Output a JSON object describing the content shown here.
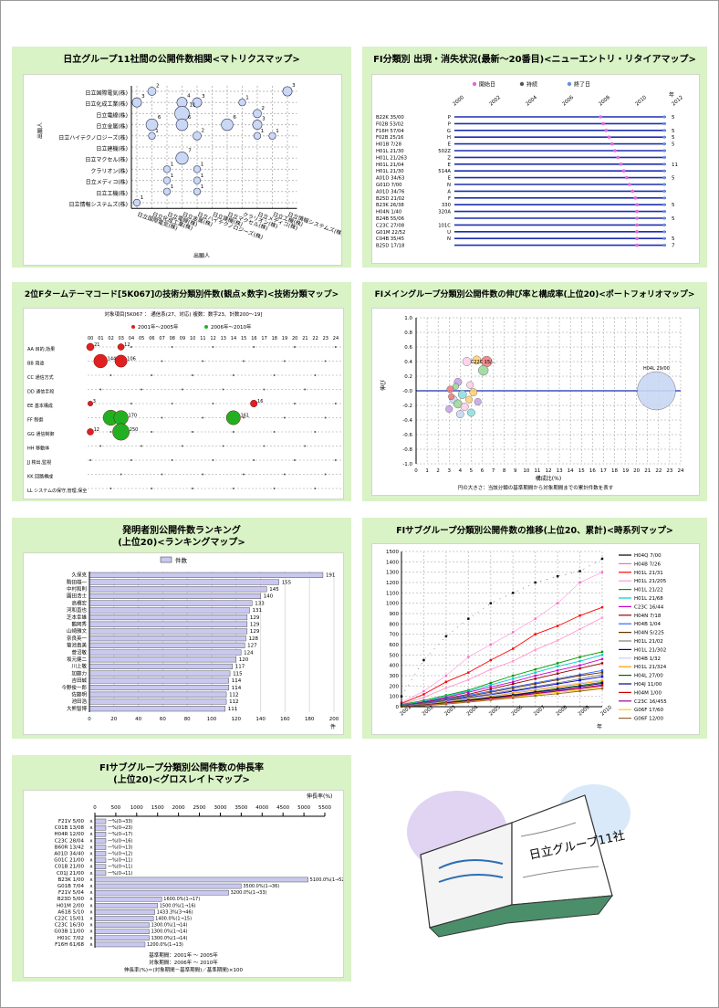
{
  "panels": {
    "matrix": {
      "title": "日立グループ11社間の公開件数相関<マトリクスマップ>",
      "ylabel": "出願人",
      "xlabel": "出願人"
    },
    "entry": {
      "title": "FI分類別 出現・消失状況(最新～20番目)<ニューエントリ・リタイアマップ>",
      "legend": [
        "開始日",
        "持続",
        "終了日"
      ]
    },
    "tech": {
      "title": "2位Fタームテーマコード[5K067]の技術分類別件数(観点×数字)<技術分類マップ>",
      "subtitle": "対象項目[5K067 ：  通信系(27、対応)  複数：数字23、計数200～19]",
      "legend": [
        "2001年～2005年",
        "2006年～2010年"
      ]
    },
    "portfolio": {
      "title": "FIメイングループ分類別公開件数の伸び率と構成率(上位20)<ポートフォリオマップ>",
      "ylabel": "伸び",
      "xlabel": "構成比(%)",
      "note": "円の大きさ：当該分類の基準期間から対象期間までの累計件数を表す",
      "bubble_label": "H04L 29/00"
    },
    "ranking": {
      "title_line1": "発明者別公開件数ランキング",
      "title_line2": "(上位20)<ランキングマップ>",
      "legend": "件数",
      "unit": "件"
    },
    "timeseries": {
      "title": "FIサブグループ分類別公開件数の推移(上位20、累計)<時系列マップ>",
      "xunit": "年"
    },
    "growth": {
      "title_line1": "FIサブグループ分類別公開件数の伸長率",
      "title_line2": "(上位20)<グロスレイトマップ>",
      "unit": "伸長率(%)",
      "footer": [
        "基準期間：2001年 ～ 2005年",
        "対象期間：2006年 ～ 2010年",
        "伸長率(%)＝(対象期間－基準期間)／基準期間)×100"
      ]
    },
    "clipart": {
      "label": "日立グループ11社"
    }
  },
  "chart_data": [
    {
      "type": "scatter",
      "id": "matrix",
      "title": "日立グループ11社間の公開件数相関<マトリクスマップ>",
      "rows": [
        "日立国際電気(株)",
        "日立化成工業(株)",
        "日立電線(株)",
        "日立金属(株)",
        "日立ハイテクノロジーズ(株)",
        "日立建機(株)",
        "日立マクセル(株)",
        "クラリオン(株)",
        "日立メディコ(株)",
        "日立工機(株)",
        "日立情報システムズ(株)"
      ],
      "cols": [
        "日立国際電気(株)",
        "日立化成工業(株)",
        "日立電線(株)",
        "日立金属(株)",
        "日立ハイテクノロジーズ(株)",
        "日立建機(株)",
        "日立マクセル(株)",
        "クラリオン(株)",
        "日立メディコ(株)",
        "日立工機(株)",
        "日立情報システムズ(株)"
      ],
      "points": [
        {
          "r": 0,
          "c": 1,
          "v": 2
        },
        {
          "r": 0,
          "c": 10,
          "v": 3
        },
        {
          "r": 1,
          "c": 0,
          "v": 3
        },
        {
          "r": 1,
          "c": 3,
          "v": 4
        },
        {
          "r": 1,
          "c": 4,
          "v": 3
        },
        {
          "r": 1,
          "c": 7,
          "v": 1
        },
        {
          "r": 2,
          "c": 3,
          "v": 11
        },
        {
          "r": 2,
          "c": 8,
          "v": 2
        },
        {
          "r": 3,
          "c": 1,
          "v": 6
        },
        {
          "r": 3,
          "c": 3,
          "v": 6
        },
        {
          "r": 3,
          "c": 6,
          "v": 6
        },
        {
          "r": 3,
          "c": 8,
          "v": 3
        },
        {
          "r": 4,
          "c": 1,
          "v": 1
        },
        {
          "r": 4,
          "c": 4,
          "v": 2
        },
        {
          "r": 4,
          "c": 8,
          "v": 1
        },
        {
          "r": 4,
          "c": 9,
          "v": 1
        },
        {
          "r": 6,
          "c": 3,
          "v": 7
        },
        {
          "r": 7,
          "c": 2,
          "v": 1
        },
        {
          "r": 7,
          "c": 4,
          "v": 1
        },
        {
          "r": 8,
          "c": 2,
          "v": 1
        },
        {
          "r": 8,
          "c": 4,
          "v": 1
        },
        {
          "r": 9,
          "c": 2,
          "v": 1
        },
        {
          "r": 9,
          "c": 4,
          "v": 1
        },
        {
          "r": 10,
          "c": 0,
          "v": 1
        }
      ]
    },
    {
      "type": "scatter",
      "id": "entry",
      "title": "FI分類別 出現・消失状況(最新～20番目)<ニューエントリ・リタイアマップ>",
      "x_ticks": [
        "2000",
        "2002",
        "2004",
        "2006",
        "2008",
        "2010",
        "2012"
      ],
      "xunit": "年",
      "rows": [
        {
          "label": "B22K 35/00",
          "code": "P",
          "count": 5
        },
        {
          "label": "F02B 53/02",
          "code": "P",
          "count": ""
        },
        {
          "label": "F16H 57/04",
          "code": "G",
          "count": 5
        },
        {
          "label": "F02B 25/16",
          "code": "H",
          "count": 5
        },
        {
          "label": "H01B 7/28",
          "code": "E",
          "count": 5
        },
        {
          "label": "H01L 21/30",
          "code": "502Z",
          "count": ""
        },
        {
          "label": "H01L 21/263",
          "code": "Z",
          "count": ""
        },
        {
          "label": "H01L 21/04",
          "code": "E",
          "count": 11
        },
        {
          "label": "H01L 21/30",
          "code": "514A",
          "count": ""
        },
        {
          "label": "A01D 34/63",
          "code": "E",
          "count": 5
        },
        {
          "label": "G01D 7/00",
          "code": "N",
          "count": ""
        },
        {
          "label": "A01D 34/76",
          "code": "A",
          "count": ""
        },
        {
          "label": "B25D 21/02",
          "code": "F",
          "count": ""
        },
        {
          "label": "B23K 26/38",
          "code": "330",
          "count": 5
        },
        {
          "label": "H04N 1/40",
          "code": "320A",
          "count": ""
        },
        {
          "label": "B24B 55/06",
          "code": "",
          "count": 5
        },
        {
          "label": "C23C 27/08",
          "code": "101C",
          "count": ""
        },
        {
          "label": "G01M 22/52",
          "code": "U",
          "count": ""
        },
        {
          "label": "C04B 35/45",
          "code": "N",
          "count": 5
        },
        {
          "label": "B25D 17/18",
          "code": "",
          "count": 7
        }
      ]
    },
    {
      "type": "scatter",
      "id": "tech",
      "title": "2位Fタームテーマコード[5K067]の技術分類別件数(観点×数字)<技術分類マップ>",
      "col_labels": [
        "00",
        "01",
        "02",
        "03",
        "04",
        "05",
        "06",
        "07",
        "08",
        "09",
        "10",
        "11",
        "12",
        "13",
        "14",
        "15",
        "16",
        "17",
        "18",
        "19",
        "20",
        "21",
        "22",
        "23",
        "24"
      ],
      "row_labels": [
        "AA 目的,効果",
        "BB 用途",
        "CC 通信方式",
        "DD 通信手段",
        "EE 基本構成",
        "FF 制御",
        "GG 通信制御",
        "HH 移動体",
        "JJ 検出,監視",
        "KK 回路構成",
        "LL システムの保守,管理,保全"
      ],
      "series": [
        "2001年～2005年",
        "2006年～2010年"
      ],
      "highlights": [
        {
          "row": 0,
          "col": 0,
          "v": 21
        },
        {
          "row": 0,
          "col": 3,
          "v": 12
        },
        {
          "row": 1,
          "col": 1,
          "v": 144
        },
        {
          "row": 1,
          "col": 3,
          "v": 106
        },
        {
          "row": 4,
          "col": 0,
          "v": 3
        },
        {
          "row": 4,
          "col": 16,
          "v": 16
        },
        {
          "row": 5,
          "col": 2,
          "v": 195
        },
        {
          "row": 5,
          "col": 3,
          "v": 170
        },
        {
          "row": 5,
          "col": 14,
          "v": 161
        },
        {
          "row": 6,
          "col": 0,
          "v": 12
        },
        {
          "row": 6,
          "col": 3,
          "v": 250
        }
      ]
    },
    {
      "type": "scatter",
      "id": "portfolio",
      "title": "FIメイングループ分類別公開件数の伸び率と構成率(上位20)<ポートフォリオマップ>",
      "xlabel": "構成比(%)",
      "ylabel": "伸び",
      "xlim": [
        0,
        24
      ],
      "ylim": [
        -1,
        1
      ],
      "points": [
        {
          "x": 21.8,
          "y": 0.0,
          "size": 5,
          "label": "H04L 29/00"
        },
        {
          "x": 6.4,
          "y": 0.4,
          "size": 1.4,
          "label": ""
        },
        {
          "x": 5.5,
          "y": 0.42,
          "size": 1.1,
          "label": ""
        },
        {
          "x": 6.1,
          "y": 0.28,
          "size": 1.3,
          "label": "C22C 15/..."
        },
        {
          "x": 4.6,
          "y": 0.4,
          "size": 1.1,
          "label": ""
        },
        {
          "x": 3.8,
          "y": 0.12,
          "size": 1,
          "label": ""
        },
        {
          "x": 4.2,
          "y": -0.05,
          "size": 1.1,
          "label": ""
        },
        {
          "x": 3.4,
          "y": -0.12,
          "size": 1,
          "label": ""
        },
        {
          "x": 3.1,
          "y": 0.02,
          "size": 0.9,
          "label": ""
        },
        {
          "x": 5.2,
          "y": -0.02,
          "size": 1,
          "label": ""
        },
        {
          "x": 3.8,
          "y": -0.18,
          "size": 1.1,
          "label": ""
        },
        {
          "x": 4.4,
          "y": -0.22,
          "size": 1,
          "label": ""
        },
        {
          "x": 3.0,
          "y": -0.25,
          "size": 0.9,
          "label": ""
        },
        {
          "x": 5.0,
          "y": -0.3,
          "size": 1,
          "label": ""
        },
        {
          "x": 4.0,
          "y": -0.32,
          "size": 1,
          "label": ""
        },
        {
          "x": 3.2,
          "y": -0.08,
          "size": 0.8,
          "label": ""
        },
        {
          "x": 4.8,
          "y": -0.12,
          "size": 0.9,
          "label": ""
        },
        {
          "x": 3.6,
          "y": 0.06,
          "size": 0.8,
          "label": ""
        },
        {
          "x": 4.9,
          "y": 0.08,
          "size": 0.9,
          "label": ""
        },
        {
          "x": 5.6,
          "y": -0.15,
          "size": 0.9,
          "label": ""
        }
      ]
    },
    {
      "type": "bar",
      "id": "ranking",
      "title": "発明者別公開件数ランキング(上位20)<ランキングマップ>",
      "series_name": "件数",
      "xlim": [
        0,
        200
      ],
      "x_ticks": [
        0,
        20,
        40,
        60,
        80,
        100,
        120,
        140,
        160,
        180,
        200
      ],
      "categories": [
        "久保克",
        "駒田雄一",
        "中村和則",
        "園田浩士",
        "高橋宏",
        "河和直也",
        "芝本幸雄",
        "鶴岡秀",
        "山崎雅文",
        "奈良英一",
        "菊池直美",
        "菅沼敬",
        "坂元健二",
        "川上敬",
        "加藤力",
        "吉田誠",
        "今野俊一郎",
        "佐藤明",
        "池田浩",
        "大熊智博"
      ],
      "values": [
        191,
        155,
        145,
        140,
        133,
        131,
        129,
        129,
        129,
        128,
        127,
        124,
        120,
        117,
        115,
        114,
        114,
        112,
        112,
        111
      ]
    },
    {
      "type": "line",
      "id": "timeseries",
      "title": "FIサブグループ分類別公開件数の推移(上位20、累計)<時系列マップ>",
      "ylim": [
        0,
        1500
      ],
      "y_ticks": [
        0,
        100,
        200,
        300,
        400,
        500,
        600,
        700,
        800,
        900,
        1000,
        1100,
        1200,
        1300,
        1400,
        1500
      ],
      "x": [
        "2001",
        "2002",
        "2003",
        "2004",
        "2005",
        "2006",
        "2007",
        "2008",
        "2009",
        "2010"
      ],
      "xunit": "年",
      "series": [
        {
          "name": "H04Q 7/00",
          "color": "#000000",
          "values": [
            100,
            450,
            680,
            850,
            1000,
            1100,
            1200,
            1260,
            1310,
            1430
          ]
        },
        {
          "name": "H04B 7/26",
          "color": "#ff66cc",
          "values": [
            40,
            150,
            300,
            480,
            600,
            720,
            850,
            1000,
            1200,
            1300
          ]
        },
        {
          "name": "H01L 21/31",
          "color": "#ff0000",
          "values": [
            30,
            120,
            240,
            330,
            450,
            560,
            700,
            780,
            880,
            960
          ]
        },
        {
          "name": "H01L 21/205",
          "color": "#ff99cc",
          "values": [
            20,
            90,
            180,
            260,
            360,
            440,
            550,
            640,
            750,
            860
          ]
        },
        {
          "name": "H01L 21/22",
          "color": "#009900",
          "values": [
            20,
            60,
            110,
            160,
            230,
            300,
            360,
            420,
            480,
            530
          ]
        },
        {
          "name": "H01L 21/68",
          "color": "#00cccc",
          "values": [
            15,
            50,
            100,
            150,
            210,
            270,
            330,
            390,
            440,
            500
          ]
        },
        {
          "name": "C23C 16/44",
          "color": "#cc00cc",
          "values": [
            12,
            45,
            90,
            140,
            190,
            240,
            300,
            350,
            400,
            460
          ]
        },
        {
          "name": "H04N 7/18",
          "color": "#990000",
          "values": [
            10,
            40,
            80,
            120,
            170,
            220,
            270,
            320,
            370,
            420
          ]
        },
        {
          "name": "H04B 1/04",
          "color": "#3366ff",
          "values": [
            10,
            35,
            75,
            110,
            150,
            190,
            230,
            270,
            310,
            350
          ]
        },
        {
          "name": "H04N 5/225",
          "color": "#663300",
          "values": [
            8,
            30,
            65,
            100,
            140,
            180,
            220,
            260,
            300,
            330
          ]
        },
        {
          "name": "H01L 21/02",
          "color": "#808080",
          "values": [
            8,
            28,
            60,
            90,
            125,
            160,
            195,
            230,
            270,
            310
          ]
        },
        {
          "name": "H01L 21/302",
          "color": "#0000cc",
          "values": [
            6,
            25,
            55,
            85,
            115,
            150,
            185,
            220,
            255,
            290
          ]
        },
        {
          "name": "H04B 1/32",
          "color": "#ccccff",
          "values": [
            6,
            22,
            50,
            80,
            110,
            140,
            170,
            200,
            230,
            260
          ]
        },
        {
          "name": "H01L 21/324",
          "color": "#ff9900",
          "values": [
            5,
            20,
            45,
            70,
            100,
            130,
            160,
            190,
            220,
            250
          ]
        },
        {
          "name": "H04L 27/00",
          "color": "#006600",
          "values": [
            5,
            18,
            40,
            65,
            90,
            115,
            145,
            175,
            205,
            235
          ]
        },
        {
          "name": "H04J 11/00",
          "color": "#000099",
          "values": [
            4,
            16,
            36,
            60,
            85,
            110,
            140,
            165,
            195,
            225
          ]
        },
        {
          "name": "H04M 1/00",
          "color": "#cc0000",
          "values": [
            4,
            15,
            34,
            55,
            80,
            105,
            130,
            155,
            180,
            210
          ]
        },
        {
          "name": "C23C 16/455",
          "color": "#990099",
          "values": [
            3,
            14,
            30,
            50,
            75,
            100,
            125,
            150,
            175,
            200
          ]
        },
        {
          "name": "G06F 17/60",
          "color": "#ffcc00",
          "values": [
            3,
            12,
            28,
            48,
            70,
            92,
            115,
            138,
            160,
            185
          ]
        },
        {
          "name": "G06F 12/00",
          "color": "#996633",
          "values": [
            2,
            10,
            25,
            44,
            65,
            85,
            105,
            125,
            150,
            175
          ]
        }
      ]
    },
    {
      "type": "bar",
      "id": "growth",
      "title": "FIサブグループ分類別公開件数の伸長率(上位20)<グロスレイトマップ>",
      "xlim": [
        0,
        5500
      ],
      "x_ticks": [
        0,
        500,
        1000,
        1500,
        2000,
        2500,
        3000,
        3500,
        4000,
        4500,
        5000,
        5500
      ],
      "categories": [
        "F21V 5/00",
        "C01B 13/08",
        "H04R 12/00",
        "C23C 28/04",
        "B60R 13/42",
        "A01D 34/40",
        "G01C 21/00",
        "C01B 21/00",
        "C01J 21/00",
        "B23K 1/00",
        "G01B 7/04",
        "F21V 5/04",
        "B23D 5/00",
        "H01M 2/00",
        "A61B 5/10",
        "C22C 15/01",
        "C23C 16/30",
        "G03B 11/00",
        "H01C 7/02",
        "F16H 61/68"
      ],
      "values": [
        0,
        0,
        0,
        0,
        0,
        0,
        0,
        0,
        0,
        5100,
        3500,
        3200,
        1600,
        1500,
        1433,
        1400,
        1300,
        1300,
        1300,
        1200
      ],
      "labels": [
        "一%(0→33)",
        "一%(0→23)",
        "一%(0→17)",
        "一%(0→16)",
        "一%(0→13)",
        "一%(0→12)",
        "一%(0→11)",
        "一%(0→11)",
        "一%(0→11)",
        "5100.0%(1→52)",
        "3500.0%(1→36)",
        "3200.0%(1→33)",
        "1600.0%(1→17)",
        "1500.0%(1→16)",
        "1433.3%(3→46)",
        "1400.0%(1→15)",
        "1300.0%(1→14)",
        "1300.0%(1→14)",
        "1300.0%(1→14)",
        "1200.0%(1→13)"
      ]
    }
  ]
}
